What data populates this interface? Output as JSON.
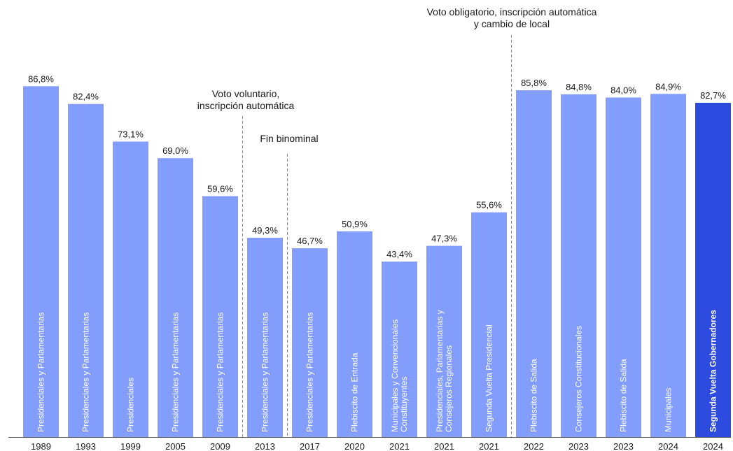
{
  "chart_data": {
    "type": "bar",
    "title": "",
    "xlabel": "",
    "ylabel": "",
    "ylim": [
      0,
      100
    ],
    "grid": false,
    "colors": {
      "default": "#829dfb",
      "highlight": "#2e4be0"
    },
    "categories": [
      "1989",
      "1993",
      "1999",
      "2005",
      "2009",
      "2013",
      "2017",
      "2020",
      "2021",
      "2021",
      "2021",
      "2022",
      "2023",
      "2023",
      "2024",
      "2024"
    ],
    "election_types": [
      [
        "Presidenciales y Parlamentarias"
      ],
      [
        "Presidenciales y Parlamentarias"
      ],
      [
        "Presidenciales"
      ],
      [
        "Presidenciales y Parlamentarias"
      ],
      [
        "Presidenciales y Parlamentarias"
      ],
      [
        "Presidenciales y Parlamentarias"
      ],
      [
        "Presidenciales y Parlamentarias"
      ],
      [
        "Plebiscito de Entrada"
      ],
      [
        "Municipales y Convencionales",
        "Constituyentes"
      ],
      [
        "Presidenciales, Parlamentarias y",
        "Consejeros Regionales"
      ],
      [
        "Segunda Vuelta Presidencial"
      ],
      [
        "Plebiscito de Salida"
      ],
      [
        "Consejeros Constitucionales"
      ],
      [
        "Plebiscito de Salida"
      ],
      [
        "Municipales"
      ],
      [
        "Segunda Vuelta Gobernadores"
      ]
    ],
    "values": [
      86.8,
      82.4,
      73.1,
      69.0,
      59.6,
      49.3,
      46.7,
      50.9,
      43.4,
      47.3,
      55.6,
      85.8,
      84.8,
      84.0,
      84.9,
      82.7
    ],
    "value_labels": [
      "86,8%",
      "82,4%",
      "73,1%",
      "69,0%",
      "59,6%",
      "49,3%",
      "46,7%",
      "50,9%",
      "43,4%",
      "47,3%",
      "55,6%",
      "85,8%",
      "84,8%",
      "84,0%",
      "84,9%",
      "82,7%"
    ],
    "highlight_index": 15,
    "annotations": [
      {
        "between": [
          4,
          5
        ],
        "lines": [
          "Voto voluntario,",
          "inscripción automática"
        ]
      },
      {
        "between": [
          5,
          6
        ],
        "lines": [
          "Fin binominal"
        ]
      },
      {
        "between": [
          10,
          11
        ],
        "lines": [
          "Voto obligatorio, inscripción automática",
          "y cambio de local"
        ]
      }
    ]
  }
}
